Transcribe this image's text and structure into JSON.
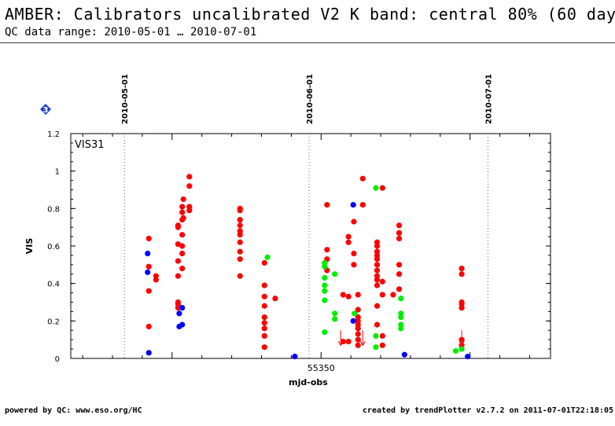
{
  "header": {
    "title": "AMBER: Calibrators uncalibrated V2 K band: central 80% (60 days)",
    "subtitle": "QC data range: 2010-05-01 … 2010-07-01"
  },
  "footer": {
    "left": "powered by QC: www.eso.org/HC",
    "right": "created by trendPlotter v2.7.2 on 2011-07-01T22:18:05"
  },
  "badge": {
    "label": "3",
    "icon": "diamond-badge-icon",
    "color": "#1f3fd0"
  },
  "chart_data": {
    "type": "scatter",
    "panel_label": "VIS31",
    "xlabel": "mjd-obs",
    "ylabel": "VIS",
    "xlim": [
      55308,
      55388.5
    ],
    "ylim": [
      0,
      1.2
    ],
    "x_ticks": [
      {
        "value": 55350,
        "label": "55350"
      }
    ],
    "y_ticks": [
      {
        "value": 0,
        "label": "0"
      },
      {
        "value": 0.2,
        "label": "0.2"
      },
      {
        "value": 0.4,
        "label": "0.4"
      },
      {
        "value": 0.6,
        "label": "0.6"
      },
      {
        "value": 0.8,
        "label": "0.8"
      },
      {
        "value": 1,
        "label": "1"
      },
      {
        "value": 1.2,
        "label": "1.2"
      }
    ],
    "date_markers": [
      {
        "x": 55317,
        "label": "2010-05-01"
      },
      {
        "x": 55348,
        "label": "2010-06-01"
      },
      {
        "x": 55378,
        "label": "2010-07-01"
      }
    ],
    "grid": false,
    "series": [
      {
        "color": "#ff0000",
        "points": [
          [
            55321.1,
            0.64
          ],
          [
            55321.1,
            0.49
          ],
          [
            55321.1,
            0.36
          ],
          [
            55321.1,
            0.17
          ],
          [
            55322.3,
            0.44
          ],
          [
            55322.3,
            0.42
          ],
          [
            55326,
            0.71
          ],
          [
            55326,
            0.7
          ],
          [
            55326,
            0.61
          ],
          [
            55326,
            0.52
          ],
          [
            55326,
            0.44
          ],
          [
            55326,
            0.3
          ],
          [
            55326,
            0.29
          ],
          [
            55326,
            0.27
          ],
          [
            55326.7,
            0.81
          ],
          [
            55326.7,
            0.78
          ],
          [
            55326.7,
            0.74
          ],
          [
            55326.7,
            0.66
          ],
          [
            55326.7,
            0.6
          ],
          [
            55326.7,
            0.56
          ],
          [
            55326.7,
            0.48
          ],
          [
            55326.9,
            0.85
          ],
          [
            55326.9,
            0.75
          ],
          [
            55327.9,
            0.97
          ],
          [
            55327.9,
            0.92
          ],
          [
            55327.9,
            0.81
          ],
          [
            55327.9,
            0.79
          ],
          [
            55336.4,
            0.8
          ],
          [
            55336.4,
            0.79
          ],
          [
            55336.4,
            0.74
          ],
          [
            55336.4,
            0.71
          ],
          [
            55336.4,
            0.68
          ],
          [
            55336.4,
            0.66
          ],
          [
            55336.4,
            0.62
          ],
          [
            55336.4,
            0.57
          ],
          [
            55336.4,
            0.53
          ],
          [
            55336.4,
            0.44
          ],
          [
            55340.5,
            0.51
          ],
          [
            55340.5,
            0.39
          ],
          [
            55340.5,
            0.33
          ],
          [
            55340.5,
            0.28
          ],
          [
            55340.5,
            0.22
          ],
          [
            55340.5,
            0.19
          ],
          [
            55340.5,
            0.16
          ],
          [
            55340.5,
            0.12
          ],
          [
            55340.5,
            0.06
          ],
          [
            55342.3,
            0.32
          ],
          [
            55351,
            0.82
          ],
          [
            55351,
            0.58
          ],
          [
            55351,
            0.53
          ],
          [
            55351,
            0.47
          ],
          [
            55353.7,
            0.09
          ],
          [
            55353.7,
            0.34
          ],
          [
            55354.6,
            0.65
          ],
          [
            55354.6,
            0.62
          ],
          [
            55354.6,
            0.33
          ],
          [
            55354.6,
            0.09
          ],
          [
            55355.5,
            0.73
          ],
          [
            55355.5,
            0.5
          ],
          [
            55355.5,
            0.56
          ],
          [
            55356.2,
            0.34
          ],
          [
            55356.2,
            0.26
          ],
          [
            55356.2,
            0.22
          ],
          [
            55356.2,
            0.2
          ],
          [
            55356.2,
            0.18
          ],
          [
            55356.2,
            0.16
          ],
          [
            55356.2,
            0.13
          ],
          [
            55356.2,
            0.1
          ],
          [
            55356.2,
            0.07
          ],
          [
            55357,
            0.96
          ],
          [
            55357,
            0.82
          ],
          [
            55359.4,
            0.62
          ],
          [
            55359.4,
            0.6
          ],
          [
            55359.4,
            0.57
          ],
          [
            55359.4,
            0.55
          ],
          [
            55359.4,
            0.53
          ],
          [
            55359.4,
            0.5
          ],
          [
            55359.4,
            0.47
          ],
          [
            55359.4,
            0.44
          ],
          [
            55359.4,
            0.42
          ],
          [
            55359.4,
            0.39
          ],
          [
            55359.4,
            0.28
          ],
          [
            55359.4,
            0.18
          ],
          [
            55360.3,
            0.91
          ],
          [
            55360.3,
            0.41
          ],
          [
            55360.3,
            0.34
          ],
          [
            55360.3,
            0.12
          ],
          [
            55360.3,
            0.07
          ],
          [
            55362.1,
            0.34
          ],
          [
            55363.1,
            0.71
          ],
          [
            55363.1,
            0.67
          ],
          [
            55363.1,
            0.64
          ],
          [
            55363.1,
            0.5
          ],
          [
            55363.1,
            0.45
          ],
          [
            55363.1,
            0.37
          ],
          [
            55373.6,
            0.48
          ],
          [
            55373.6,
            0.45
          ],
          [
            55373.6,
            0.3
          ],
          [
            55373.6,
            0.29
          ],
          [
            55373.6,
            0.27
          ],
          [
            55373.6,
            0.1
          ],
          [
            55373.6,
            0.07
          ]
        ]
      },
      {
        "color": "#00ee00",
        "points": [
          [
            55341,
            0.54
          ],
          [
            55350.6,
            0.51
          ],
          [
            55350.6,
            0.49
          ],
          [
            55350.6,
            0.43
          ],
          [
            55350.6,
            0.39
          ],
          [
            55350.6,
            0.36
          ],
          [
            55350.6,
            0.31
          ],
          [
            55350.6,
            0.14
          ],
          [
            55352.3,
            0.45
          ],
          [
            55352.3,
            0.24
          ],
          [
            55352.3,
            0.21
          ],
          [
            55355.6,
            0.24
          ],
          [
            55359.2,
            0.91
          ],
          [
            55359.2,
            0.12
          ],
          [
            55359.2,
            0.06
          ],
          [
            55363.4,
            0.32
          ],
          [
            55363.4,
            0.24
          ],
          [
            55363.4,
            0.22
          ],
          [
            55363.4,
            0.18
          ],
          [
            55363.4,
            0.16
          ],
          [
            55372.6,
            0.04
          ],
          [
            55373.6,
            0.05
          ]
        ]
      },
      {
        "color": "#0000ff",
        "points": [
          [
            55320.9,
            0.56
          ],
          [
            55320.9,
            0.46
          ],
          [
            55321.1,
            0.03
          ],
          [
            55326.2,
            0.24
          ],
          [
            55326.2,
            0.17
          ],
          [
            55326.7,
            0.27
          ],
          [
            55326.7,
            0.18
          ],
          [
            55345.6,
            0.01
          ],
          [
            55355.4,
            0.82
          ],
          [
            55355.4,
            0.2
          ],
          [
            55364,
            0.02
          ],
          [
            55374.6,
            0.01
          ]
        ]
      }
    ],
    "upper_limits": [
      {
        "x": 55353.3,
        "y": 0.15,
        "color": "#ff0000"
      },
      {
        "x": 55357,
        "y": 0.15,
        "color": "#ff0000"
      },
      {
        "x": 55373.6,
        "y": 0.15,
        "color": "#ff0000"
      }
    ]
  }
}
